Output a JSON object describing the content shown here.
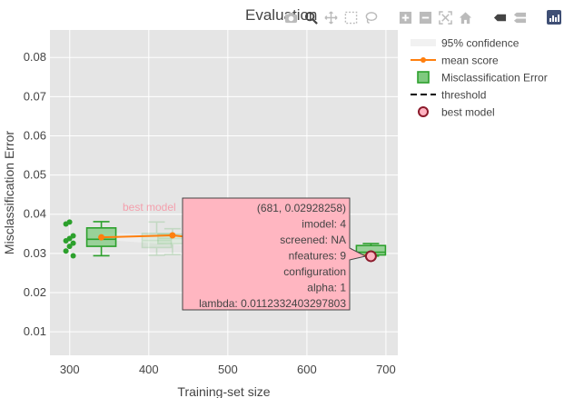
{
  "chart_data": {
    "type": "box",
    "title": "Evaluation",
    "xlabel": "Training-set size",
    "ylabel": "Misclassification Error",
    "xlim": [
      275,
      715
    ],
    "ylim": [
      0.004,
      0.087
    ],
    "x_ticks": [
      300,
      400,
      500,
      600,
      700
    ],
    "y_ticks": [
      0.01,
      0.02,
      0.03,
      0.04,
      0.05,
      0.06,
      0.07,
      0.08
    ],
    "grid": true,
    "legend_position": "right",
    "legend": [
      {
        "name": "95% confidence",
        "symbol": "band"
      },
      {
        "name": "mean score",
        "symbol": "line-marker"
      },
      {
        "name": "Misclassification Error",
        "symbol": "box"
      },
      {
        "name": "threshold",
        "symbol": "dash"
      },
      {
        "name": "best model",
        "symbol": "circle"
      }
    ],
    "boxes": [
      {
        "x": 340,
        "q1": 0.0318,
        "median": 0.0336,
        "q3": 0.0365,
        "lowerfence": 0.0294,
        "upperfence": 0.0381,
        "points": [
          0.038,
          0.0375,
          0.0345,
          0.0338,
          0.0332,
          0.0326,
          0.0318,
          0.0306,
          0.0294
        ]
      },
      {
        "x": 681,
        "q1": 0.0296,
        "median": 0.0303,
        "q3": 0.032,
        "lowerfence": 0.0293,
        "upperfence": 0.0325,
        "points": []
      }
    ],
    "faded_boxes": [
      {
        "x": 410,
        "q1": 0.0315,
        "median": 0.0333,
        "q3": 0.0351,
        "lowerfence": 0.0295,
        "upperfence": 0.038
      },
      {
        "x": 430,
        "q1": 0.0325,
        "median": 0.0338,
        "q3": 0.0349,
        "lowerfence": 0.0297,
        "upperfence": 0.0363
      }
    ],
    "mean_score": {
      "x": [
        340,
        430,
        681
      ],
      "y": [
        0.0341,
        0.0346,
        0.0293
      ]
    },
    "confidence_band": {
      "x": [
        340,
        681
      ],
      "y_low": [
        0.0335,
        0.0287
      ],
      "y_high": [
        0.0355,
        0.0309
      ]
    },
    "best_model": {
      "x": 681,
      "y": 0.02928258,
      "label": "best model"
    },
    "hover_label": {
      "lines": [
        "(681, 0.02928258)",
        "imodel: 4",
        "screened: NA",
        "nfeatures: 9",
        "configuration",
        "alpha: 1",
        "lambda: 0.0112332403297803"
      ]
    },
    "colors": {
      "box_line": "#2ca02c",
      "box_fill": "#7fc97f",
      "mean": "#ff7f0e",
      "best_fill": "#ffb3c1",
      "best_edge": "#8b1a2b",
      "hover_bg": "#ffb6c1",
      "plot_bg": "#e5e5e5"
    }
  }
}
